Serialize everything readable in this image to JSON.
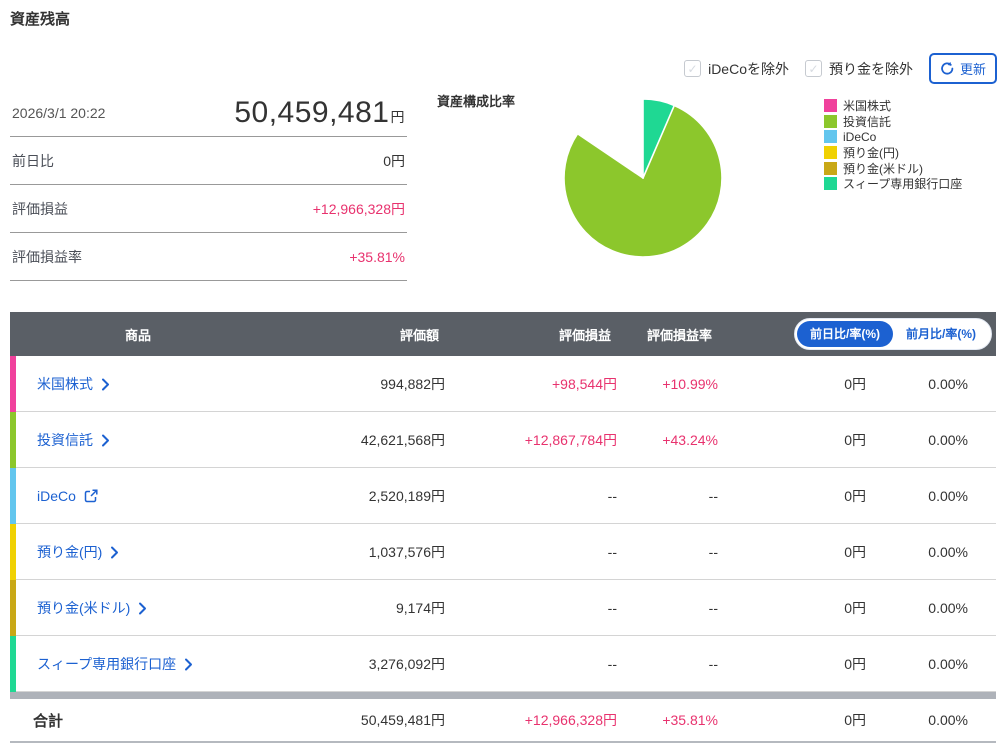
{
  "page": {
    "title": "資産残高"
  },
  "controls": {
    "checkboxes": [
      {
        "label": "iDeCoを除外",
        "checked": false
      },
      {
        "label": "預り金を除外",
        "checked": false
      }
    ],
    "refresh_label": "更新"
  },
  "summary": {
    "timestamp": "2026/3/1 20:22",
    "total_value": "50,459,481",
    "total_unit": "円",
    "rows": [
      {
        "label": "前日比",
        "value": "0円"
      },
      {
        "label": "評価損益",
        "value": "+12,966,328円"
      },
      {
        "label": "評価損益率",
        "value": "+35.81%"
      }
    ]
  },
  "chart_data": {
    "type": "pie",
    "title": "資産構成比率",
    "legend_position": "right",
    "start_angle_deg": 0,
    "direction": "clockwise",
    "slices": [
      {
        "label": "米国株式",
        "value": 994882,
        "percent": 1.97,
        "color": "#f0419c"
      },
      {
        "label": "投資信託",
        "value": 42621568,
        "percent": 84.47,
        "color": "#8cc72c"
      },
      {
        "label": "iDeCo",
        "value": 2520189,
        "percent": 5.0,
        "color": "#63c6ee"
      },
      {
        "label": "預り金(円)",
        "value": 1037576,
        "percent": 2.06,
        "color": "#f0d103"
      },
      {
        "label": "預り金(米ドル)",
        "value": 9174,
        "percent": 0.02,
        "color": "#c9a816"
      },
      {
        "label": "スィープ専用銀行口座",
        "value": 3276092,
        "percent": 6.48,
        "color": "#1fd893"
      }
    ]
  },
  "table": {
    "headers": {
      "product": "商品",
      "value": "評価額",
      "pl": "評価損益",
      "pl_rate": "評価損益率"
    },
    "toggle": [
      {
        "label": "前日比/率(%)",
        "active": true
      },
      {
        "label": "前月比/率(%)",
        "active": false
      }
    ],
    "rows": [
      {
        "product": "米国株式",
        "icon": "chevron",
        "bar_color": "#f0419c",
        "value": "994,882円",
        "pl": "+98,544円",
        "pl_rate": "+10.99%",
        "day_change": "0円",
        "day_rate": "0.00%"
      },
      {
        "product": "投資信託",
        "icon": "chevron",
        "bar_color": "#8cc72c",
        "value": "42,621,568円",
        "pl": "+12,867,784円",
        "pl_rate": "+43.24%",
        "day_change": "0円",
        "day_rate": "0.00%"
      },
      {
        "product": "iDeCo",
        "icon": "external",
        "bar_color": "#63c6ee",
        "value": "2,520,189円",
        "pl": "--",
        "pl_rate": "--",
        "day_change": "0円",
        "day_rate": "0.00%"
      },
      {
        "product": "預り金(円)",
        "icon": "chevron",
        "bar_color": "#f0d103",
        "value": "1,037,576円",
        "pl": "--",
        "pl_rate": "--",
        "day_change": "0円",
        "day_rate": "0.00%"
      },
      {
        "product": "預り金(米ドル)",
        "icon": "chevron",
        "bar_color": "#c9a816",
        "value": "9,174円",
        "pl": "--",
        "pl_rate": "--",
        "day_change": "0円",
        "day_rate": "0.00%"
      },
      {
        "product": "スィープ専用銀行口座",
        "icon": "chevron",
        "bar_color": "#1fd893",
        "value": "3,276,092円",
        "pl": "--",
        "pl_rate": "--",
        "day_change": "0円",
        "day_rate": "0.00%"
      }
    ],
    "total_row": {
      "product": "合計",
      "value": "50,459,481円",
      "pl": "+12,966,328円",
      "pl_rate": "+35.81%",
      "day_change": "0円",
      "day_rate": "0.00%"
    }
  },
  "colors": {
    "accent_blue": "#1c61d1",
    "gain_pink": "#e8326e",
    "header_gray": "#5a5f66"
  }
}
